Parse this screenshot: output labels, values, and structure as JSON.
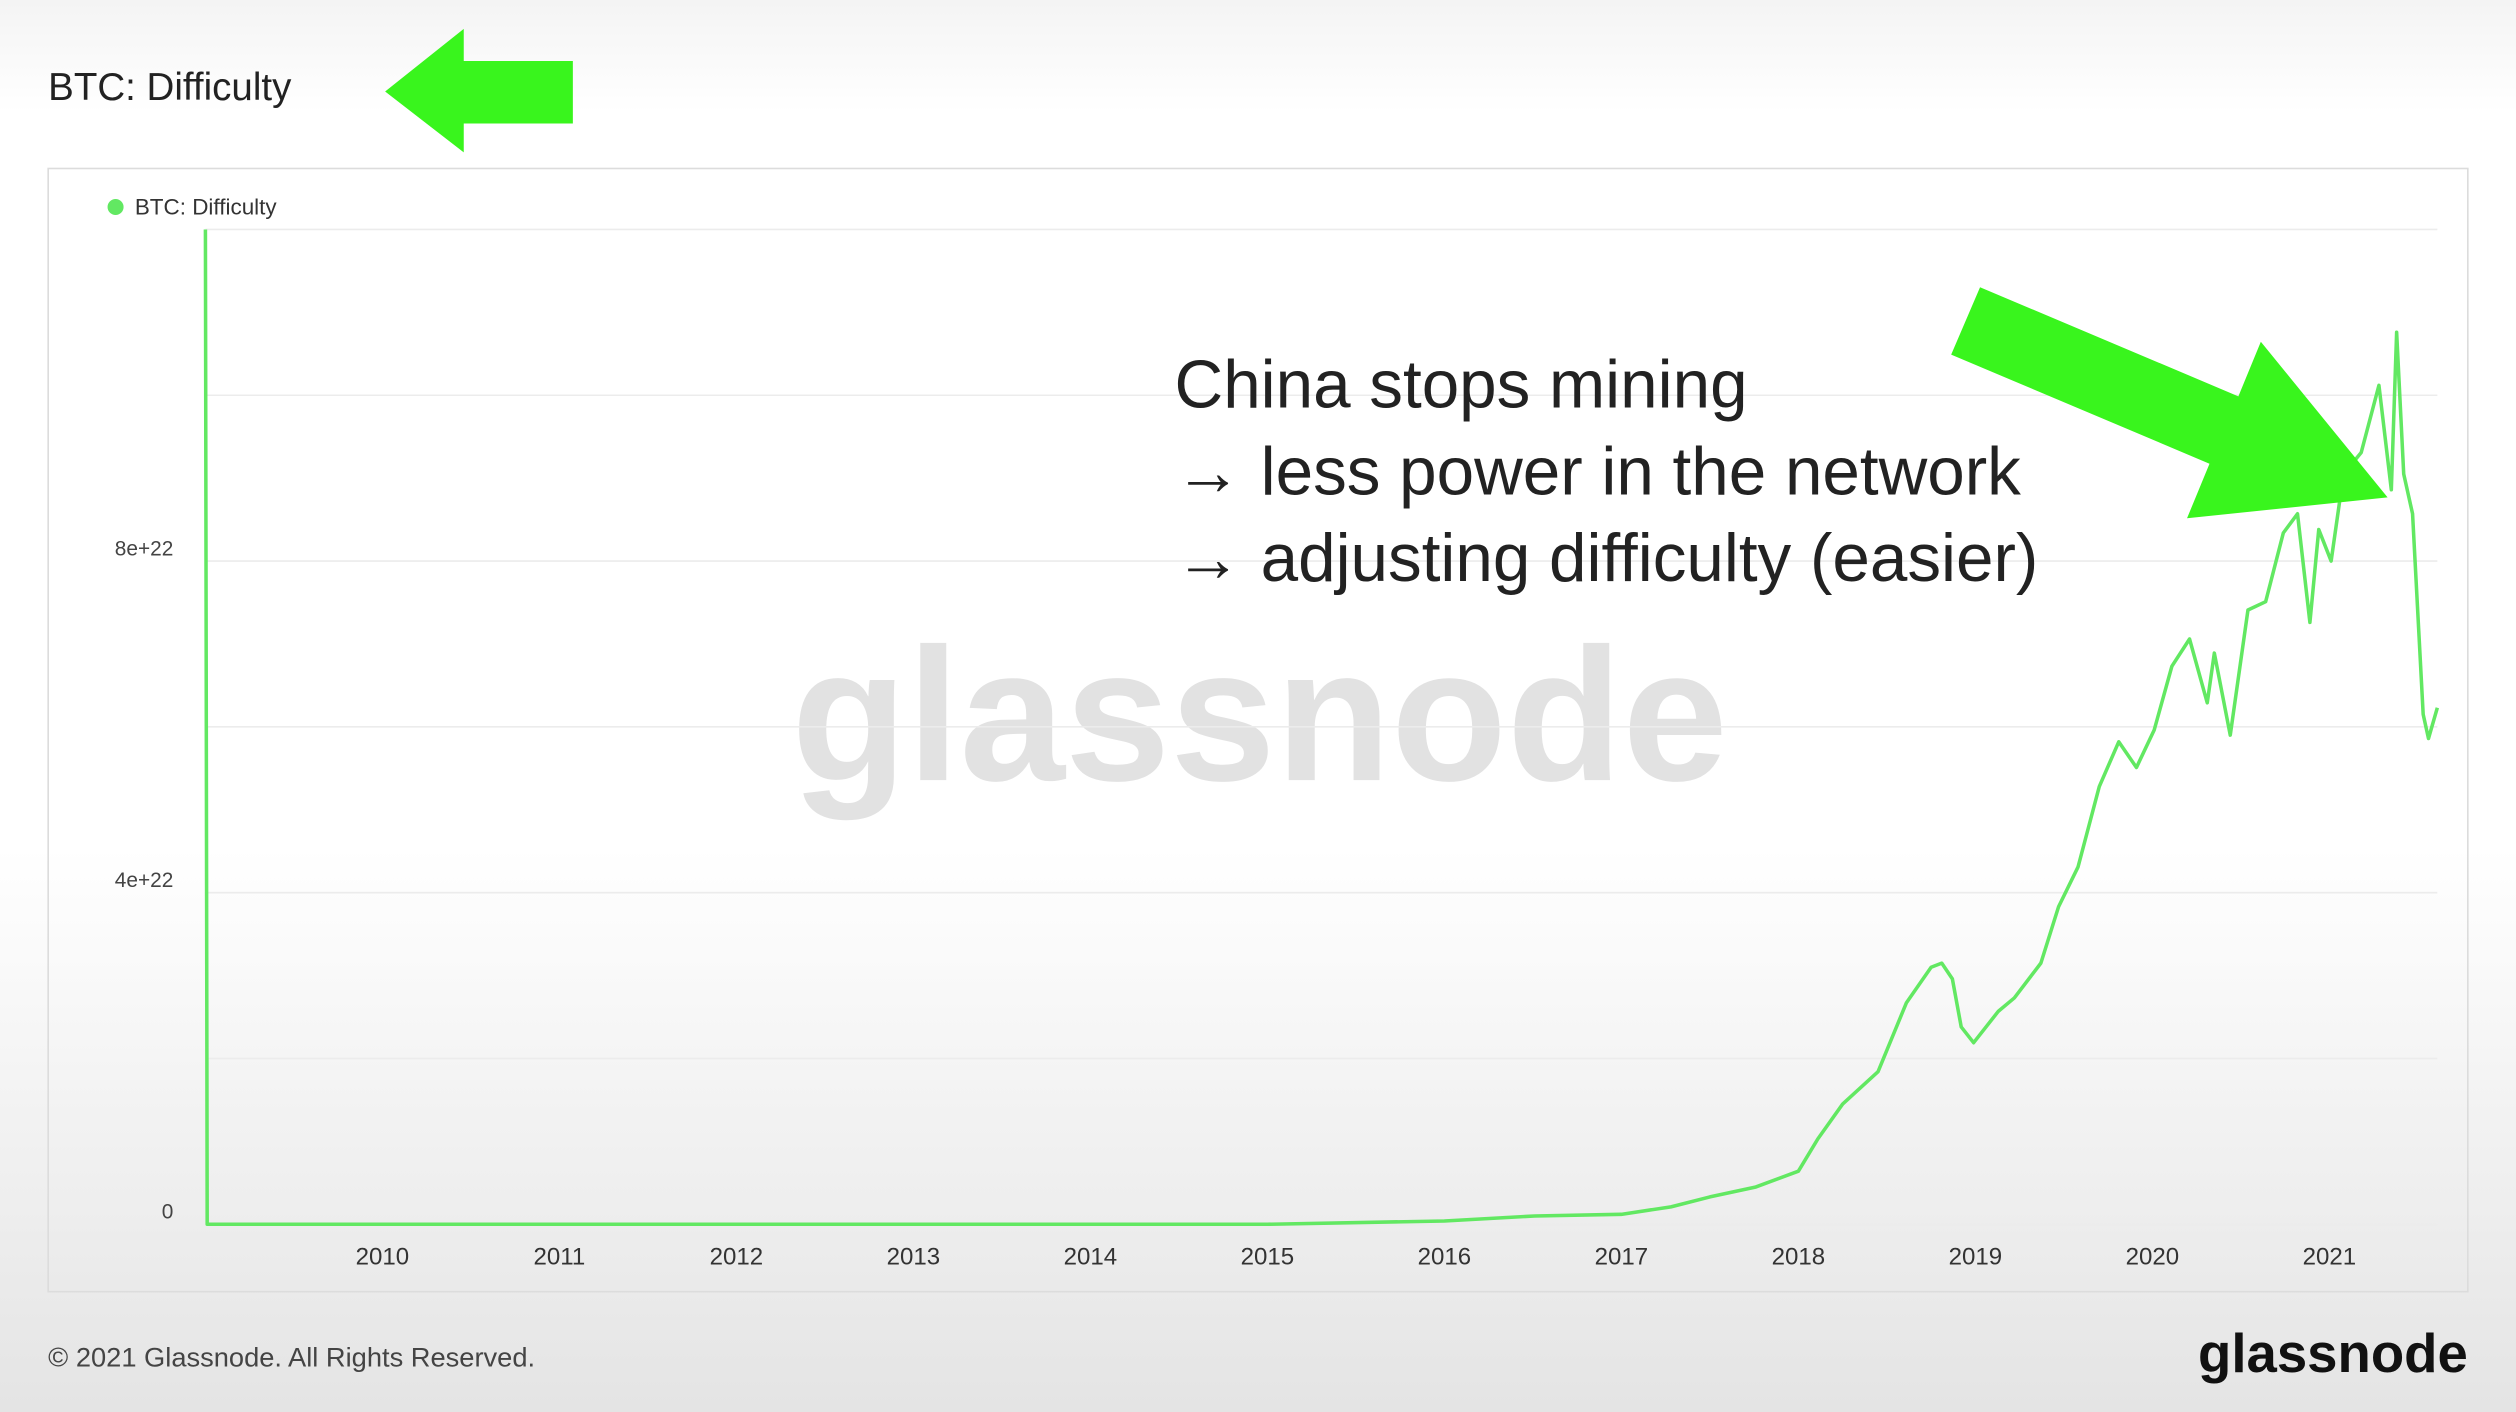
{
  "chart_data": {
    "type": "line",
    "title": "BTC: Difficulty",
    "series": [
      {
        "name": "BTC: Difficulty",
        "color": "#62e862",
        "x": [
          2009.0,
          2009.01,
          2015.0,
          2016.0,
          2016.51,
          2017.0,
          2017.28,
          2017.5,
          2017.76,
          2018.0,
          2018.11,
          2018.25,
          2018.45,
          2018.61,
          2018.75,
          2018.81,
          2018.87,
          2018.92,
          2018.99,
          2019.13,
          2019.22,
          2019.37,
          2019.47,
          2019.58,
          2019.7,
          2019.81,
          2019.91,
          2020.01,
          2020.11,
          2020.21,
          2020.31,
          2020.35,
          2020.44,
          2020.54,
          2020.64,
          2020.74,
          2020.82,
          2020.89,
          2020.94,
          2021.01,
          2021.08,
          2021.18,
          2021.28,
          2021.35,
          2021.38,
          2021.42,
          2021.47,
          2021.53,
          2021.56,
          2021.61
        ],
        "values": [
          1.2e+23,
          0,
          0,
          4e+20,
          1e+21,
          1.2e+21,
          2.1e+21,
          3.3e+21,
          4.5e+21,
          6.4e+21,
          1.03e+22,
          1.45e+22,
          1.84e+22,
          2.67e+22,
          3.1e+22,
          3.15e+22,
          2.96e+22,
          2.38e+22,
          2.19e+22,
          2.57e+22,
          2.73e+22,
          3.15e+22,
          3.83e+22,
          4.31e+22,
          5.28e+22,
          5.82e+22,
          5.51e+22,
          5.96e+22,
          6.73e+22,
          7.06e+22,
          6.29e+22,
          6.89e+22,
          5.9e+22,
          7.41e+22,
          7.51e+22,
          8.34e+22,
          8.57e+22,
          7.26e+22,
          8.38e+22,
          8e+22,
          9.05e+22,
          9.31e+22,
          1.012e+23,
          8.86e+22,
          1.076e+23,
          9.05e+22,
          8.57e+22,
          6.15e+22,
          5.86e+22,
          6.23e+22
        ]
      }
    ],
    "xlim": [
      2009.0,
      2021.61
    ],
    "xticks": [
      2010,
      2011,
      2012,
      2013,
      2014,
      2015,
      2016,
      2017,
      2018,
      2019,
      2020,
      2021
    ],
    "ylim": [
      0,
      1.2e+23
    ],
    "yticks": [
      0,
      {
        "value": 4e+22,
        "label": "4e+22"
      },
      {
        "value": 8e+22,
        "label": "8e+22"
      }
    ],
    "minor_yticks": [
      2e+22,
      6e+22,
      1e+23,
      1.2e+23
    ],
    "grid": true,
    "annotation": [
      "China stops mining",
      "→ less power in the network",
      "→ adjusting difficulty (easier)"
    ]
  },
  "footer": "© 2021 Glassnode. All Rights Reserved.",
  "brand": "glassnode"
}
